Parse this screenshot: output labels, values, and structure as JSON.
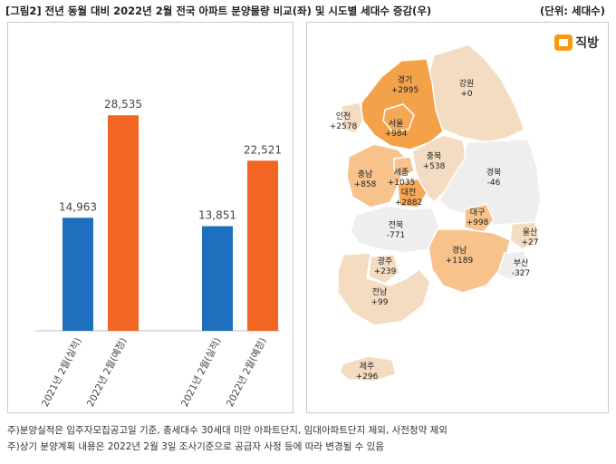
{
  "title": "[그림2] 전년 동월 대비 2022년 2월 전국 아파트 분양물량 비교(좌) 및 시도별 세대수 증감(우)",
  "unit_label": "(단위: 세대수)",
  "logo_text": "직방",
  "chart_data": {
    "type": "bar",
    "groups": [
      {
        "bars": [
          {
            "label": "2021년 2월(실적)",
            "value": 14963,
            "value_label": "14,963",
            "color": "#1f6fbf"
          },
          {
            "label": "2022년 2월(예정)",
            "value": 28535,
            "value_label": "28,535",
            "color": "#f26522"
          }
        ]
      },
      {
        "bars": [
          {
            "label": "2021년 2월(실적)",
            "value": 13851,
            "value_label": "13,851",
            "color": "#1f6fbf"
          },
          {
            "label": "2022년 2월(예정)",
            "value": 22521,
            "value_label": "22,521",
            "color": "#f26522"
          }
        ]
      }
    ],
    "ylim": [
      0,
      36000
    ],
    "grid": false
  },
  "map": {
    "regions": [
      {
        "name": "경기",
        "value": "+2995",
        "color": "#f4a24a"
      },
      {
        "name": "강원",
        "value": "+0",
        "color": "#f4dcc3"
      },
      {
        "name": "인천",
        "value": "+2578",
        "color": "#f4dcc3"
      },
      {
        "name": "서울",
        "value": "+984",
        "color": "#f5a957"
      },
      {
        "name": "충북",
        "value": "+538",
        "color": "#f4dcc3"
      },
      {
        "name": "세종",
        "value": "+1035",
        "color": "#f7c28c"
      },
      {
        "name": "충남",
        "value": "+858",
        "color": "#f7c28c"
      },
      {
        "name": "대전",
        "value": "+2882",
        "color": "#f5a957"
      },
      {
        "name": "경북",
        "value": "-46",
        "color": "#eeeeee"
      },
      {
        "name": "대구",
        "value": "+998",
        "color": "#f7c28c"
      },
      {
        "name": "전북",
        "value": "-771",
        "color": "#eeeeee"
      },
      {
        "name": "울산",
        "value": "+27",
        "color": "#f4dcc3"
      },
      {
        "name": "경남",
        "value": "+1189",
        "color": "#f7c28c"
      },
      {
        "name": "광주",
        "value": "+239",
        "color": "#f4dcc3"
      },
      {
        "name": "부산",
        "value": "-327",
        "color": "#eeeeee"
      },
      {
        "name": "전남",
        "value": "+99",
        "color": "#f4dcc3"
      },
      {
        "name": "제주",
        "value": "+296",
        "color": "#f4dcc3"
      }
    ]
  },
  "notes": [
    "주)분양실적은 입주자모집공고일 기준, 총세대수 30세대 미만 아파트단지, 임대아파트단지 제외, 사전청약 제외",
    "주)상기 분양계획 내용은 2022년 2월 3일 조사기준으로 공급자 사정 등에 따라 변경될 수 있음"
  ]
}
